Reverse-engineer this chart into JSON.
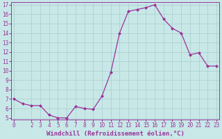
{
  "x": [
    0,
    1,
    2,
    3,
    4,
    5,
    6,
    7,
    8,
    9,
    10,
    11,
    12,
    13,
    14,
    15,
    16,
    17,
    18,
    19,
    20,
    21,
    22,
    23
  ],
  "y": [
    7.0,
    6.5,
    6.3,
    6.3,
    5.3,
    5.0,
    5.0,
    6.2,
    6.0,
    5.9,
    7.3,
    9.8,
    14.0,
    16.3,
    16.5,
    16.7,
    17.0,
    15.5,
    14.5,
    14.0,
    11.7,
    11.9,
    10.5,
    10.5
  ],
  "xlabel": "Windchill (Refroidissement éolien,°C)",
  "ylim_min": 5,
  "ylim_max": 17,
  "xlim_min": 0,
  "xlim_max": 23,
  "yticks": [
    5,
    6,
    7,
    8,
    9,
    10,
    11,
    12,
    13,
    14,
    15,
    16,
    17
  ],
  "xticks": [
    0,
    2,
    3,
    4,
    5,
    6,
    7,
    8,
    9,
    10,
    11,
    12,
    13,
    14,
    15,
    16,
    17,
    18,
    19,
    20,
    21,
    22,
    23
  ],
  "xtick_labels": [
    "0",
    "2",
    "3",
    "4",
    "5",
    "6",
    "7",
    "8",
    "9",
    "10",
    "11",
    "12",
    "13",
    "14",
    "15",
    "16",
    "17",
    "18",
    "19",
    "20",
    "21",
    "22",
    "23"
  ],
  "line_color": "#993399",
  "marker": "D",
  "marker_size": 2.0,
  "bg_color": "#c8e8e8",
  "grid_color": "#aacccc",
  "xlabel_color": "#993399",
  "tick_color": "#993399",
  "xlabel_fontsize": 6.5,
  "tick_fontsize": 5.5
}
